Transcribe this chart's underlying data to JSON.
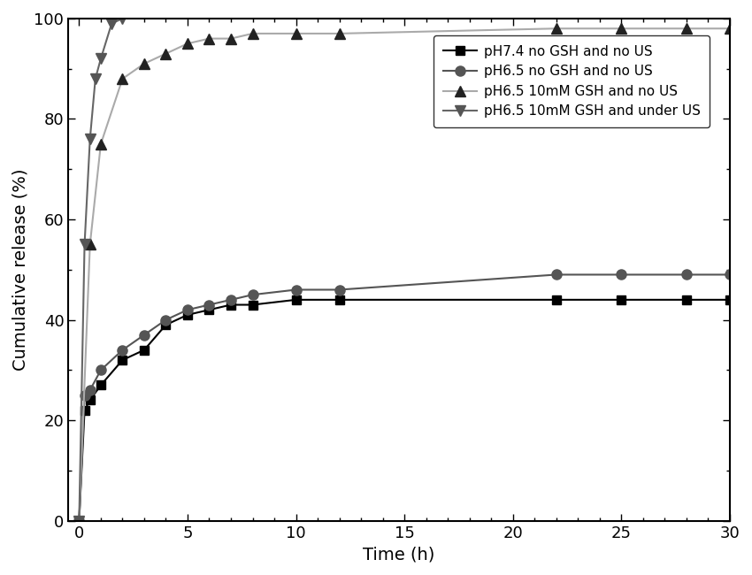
{
  "series": [
    {
      "label": "pH7.4 no GSH and no US",
      "color": "#000000",
      "linestyle": "-",
      "marker": "s",
      "markercolor": "#000000",
      "markersize": 7,
      "linewidth": 1.5,
      "x": [
        0,
        0.25,
        0.5,
        1,
        2,
        3,
        4,
        5,
        6,
        7,
        8,
        10,
        12,
        22,
        25,
        28,
        30
      ],
      "y": [
        0,
        22,
        24,
        27,
        32,
        34,
        39,
        41,
        42,
        43,
        43,
        44,
        44,
        44,
        44,
        44,
        44
      ]
    },
    {
      "label": "pH6.5 no GSH and no US",
      "color": "#555555",
      "linestyle": "-",
      "marker": "o",
      "markercolor": "#555555",
      "markersize": 8,
      "linewidth": 1.5,
      "x": [
        0,
        0.25,
        0.5,
        1,
        2,
        3,
        4,
        5,
        6,
        7,
        8,
        10,
        12,
        22,
        25,
        28,
        30
      ],
      "y": [
        0,
        25,
        26,
        30,
        34,
        37,
        40,
        42,
        43,
        44,
        45,
        46,
        46,
        49,
        49,
        49,
        49
      ]
    },
    {
      "label": "pH6.5 10mM GSH and no US",
      "color": "#aaaaaa",
      "linestyle": "-",
      "marker": "^",
      "markercolor": "#222222",
      "markersize": 9,
      "linewidth": 1.5,
      "x": [
        0,
        0.5,
        1,
        2,
        3,
        4,
        5,
        6,
        7,
        8,
        10,
        12,
        22,
        25,
        28,
        30
      ],
      "y": [
        0,
        55,
        75,
        88,
        91,
        93,
        95,
        96,
        96,
        97,
        97,
        97,
        98,
        98,
        98,
        98
      ]
    },
    {
      "label": "pH6.5 10mM GSH and under US",
      "color": "#666666",
      "linestyle": "-",
      "marker": "v",
      "markercolor": "#555555",
      "markersize": 9,
      "linewidth": 1.5,
      "x": [
        0,
        0.25,
        0.5,
        0.75,
        1,
        1.5,
        2
      ],
      "y": [
        0,
        55,
        76,
        88,
        92,
        99,
        100
      ]
    }
  ],
  "xlabel": "Time (h)",
  "ylabel": "Cumulative release (%)",
  "xlim": [
    -0.5,
    30
  ],
  "ylim": [
    0,
    100
  ],
  "xticks": [
    0,
    5,
    10,
    15,
    20,
    25,
    30
  ],
  "yticks": [
    0,
    20,
    40,
    60,
    80,
    100
  ],
  "figsize": [
    8.5,
    6.5
  ],
  "dpi": 100,
  "legend_fontsize": 11,
  "tick_labelsize": 13,
  "axis_labelsize": 14
}
